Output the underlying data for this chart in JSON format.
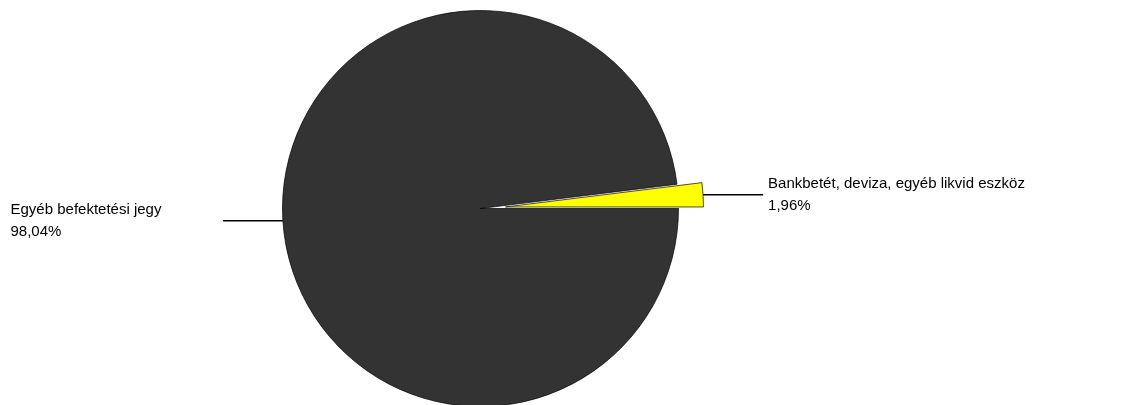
{
  "chart_data": {
    "type": "pie",
    "categories": [
      "Bankbetét, deviza, egyéb likvid eszköz",
      "Egyéb befektetési jegy"
    ],
    "values": [
      1.96,
      98.04
    ],
    "colors": [
      "#ffff00",
      "#333333"
    ],
    "value_labels": [
      "1,96%",
      "98,04%"
    ]
  }
}
